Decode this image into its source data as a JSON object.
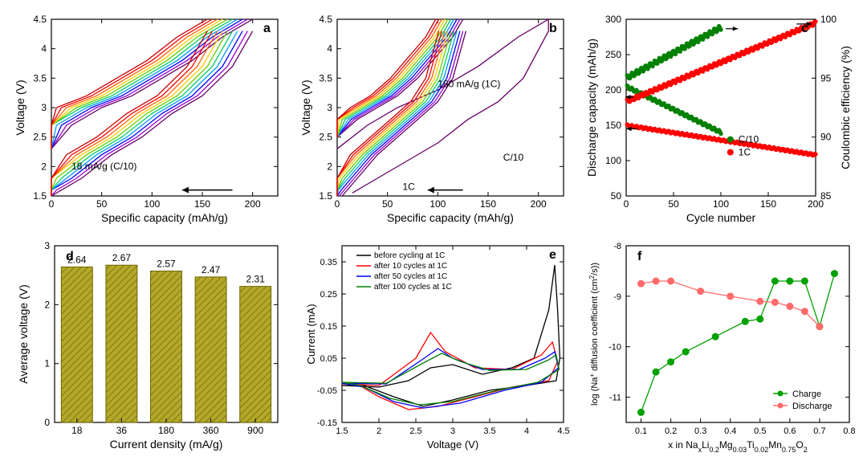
{
  "panel_a": {
    "type": "line",
    "label": "a",
    "xlabel": "Specific capacity (mAh/g)",
    "ylabel": "Voltage (V)",
    "xlim": [
      0,
      225
    ],
    "xtick_step": 50,
    "ylim": [
      1.5,
      4.5
    ],
    "ytick_step": 0.5,
    "annotation": "18 mA/g (C/10)",
    "arrow": "←",
    "colors": [
      "#660066",
      "#9900cc",
      "#0000ff",
      "#0099ff",
      "#00cc66",
      "#66cc00",
      "#ffcc00",
      "#ff6600",
      "#ff0000",
      "#cc0000"
    ],
    "charge_curve": [
      [
        0,
        2.3
      ],
      [
        20,
        2.7
      ],
      [
        50,
        3.0
      ],
      [
        80,
        3.2
      ],
      [
        110,
        3.5
      ],
      [
        140,
        3.8
      ],
      [
        170,
        4.2
      ],
      [
        190,
        4.4
      ],
      [
        200,
        4.5
      ]
    ],
    "discharge_curve": [
      [
        200,
        4.3
      ],
      [
        180,
        3.7
      ],
      [
        150,
        3.2
      ],
      [
        120,
        2.9
      ],
      [
        90,
        2.5
      ],
      [
        60,
        2.2
      ],
      [
        30,
        1.8
      ],
      [
        10,
        1.6
      ],
      [
        0,
        1.5
      ]
    ],
    "shift_per_curve": -5,
    "axis_color": "#000000",
    "label_fontsize": 14,
    "tick_fontsize": 12
  },
  "panel_b": {
    "type": "line",
    "label": "b",
    "xlabel": "Specific capacity (mAh/g)",
    "ylabel": "Voltage (V)",
    "xlim": [
      0,
      225
    ],
    "xtick_step": 50,
    "ylim": [
      1.5,
      4.5
    ],
    "ytick_step": 0.5,
    "annotation_top": "180 mA/g (1C)",
    "annotation_bottom": "1C",
    "annotation_side": "C/10",
    "arrow": "←",
    "colors": [
      "#660066",
      "#9900cc",
      "#0000ff",
      "#0099ff",
      "#00cc66",
      "#66cc00",
      "#ffcc00",
      "#ff6600",
      "#ff0000",
      "#cc0000"
    ],
    "charge_curve": [
      [
        0,
        2.5
      ],
      [
        20,
        2.8
      ],
      [
        40,
        3.0
      ],
      [
        60,
        3.2
      ],
      [
        80,
        3.5
      ],
      [
        100,
        3.9
      ],
      [
        115,
        4.2
      ],
      [
        125,
        4.5
      ]
    ],
    "discharge_curve": [
      [
        128,
        4.3
      ],
      [
        115,
        3.5
      ],
      [
        100,
        3.1
      ],
      [
        80,
        2.8
      ],
      [
        60,
        2.5
      ],
      [
        40,
        2.2
      ],
      [
        20,
        1.8
      ],
      [
        10,
        1.6
      ],
      [
        5,
        1.5
      ]
    ],
    "extra_curve": [
      [
        0,
        2.3
      ],
      [
        30,
        2.7
      ],
      [
        60,
        3.0
      ],
      [
        100,
        3.3
      ],
      [
        140,
        3.7
      ],
      [
        180,
        4.2
      ],
      [
        200,
        4.4
      ],
      [
        210,
        4.5
      ],
      [
        210,
        4.3
      ],
      [
        185,
        3.5
      ],
      [
        160,
        3.1
      ],
      [
        130,
        2.8
      ],
      [
        100,
        2.4
      ],
      [
        70,
        2.1
      ],
      [
        40,
        1.8
      ],
      [
        15,
        1.55
      ]
    ],
    "shift_per_curve": -3,
    "axis_color": "#000000",
    "label_fontsize": 14,
    "tick_fontsize": 12
  },
  "panel_c": {
    "type": "scatter-dual",
    "label": "c",
    "xlabel": "Cycle number",
    "ylabel_left": "Discharge capacity (mAh/g)",
    "ylabel_right": "Coulombic efficiency (%)",
    "xlim": [
      0,
      200
    ],
    "xtick_step": 50,
    "ylim_left": [
      50,
      300
    ],
    "ytick_left_step": 50,
    "ylim_right": [
      85,
      100
    ],
    "ytick_right_step": 5,
    "legend": [
      {
        "label": "C/10",
        "color": "#008000",
        "marker": "circle"
      },
      {
        "label": "1C",
        "color": "#ff0000",
        "marker": "circle"
      }
    ],
    "c10_capacity": {
      "n": 100,
      "start": 205,
      "end": 140
    },
    "c10_eff": {
      "n": 100,
      "start": 95,
      "end": 99.3
    },
    "c1_capacity": {
      "n": 200,
      "start": 150,
      "end": 108
    },
    "c1_eff": {
      "n": 200,
      "start": 93,
      "end": 99.7
    },
    "marker_size": 2.2,
    "axis_color": "#000000",
    "label_fontsize": 14,
    "tick_fontsize": 12
  },
  "panel_d": {
    "type": "bar",
    "label": "d",
    "xlabel": "Current density (mA/g)",
    "ylabel": "Average voltage (V)",
    "categories": [
      "18",
      "36",
      "180",
      "360",
      "900"
    ],
    "values": [
      2.64,
      2.67,
      2.57,
      2.47,
      2.31
    ],
    "ylim": [
      0,
      3
    ],
    "ytick_step": 1,
    "bar_color": "#b3a82a",
    "bar_stroke": "#6e6400",
    "hatch": true,
    "axis_color": "#000000",
    "label_fontsize": 14,
    "tick_fontsize": 12
  },
  "panel_e": {
    "type": "line",
    "label": "e",
    "xlabel": "Voltage (V)",
    "ylabel": "Current (mA)",
    "xlim": [
      1.5,
      4.5
    ],
    "xtick_step": 0.5,
    "ylim": [
      -0.15,
      0.4
    ],
    "ytick_step": 0.1,
    "legend": [
      {
        "label": "before cycling at 1C",
        "color": "#000000"
      },
      {
        "label": "after 10 cycles at 1C",
        "color": "#ff0000"
      },
      {
        "label": "after 50 cycles at 1C",
        "color": "#0000ff"
      },
      {
        "label": "after 100 cycles at 1C",
        "color": "#008000"
      }
    ],
    "curves": {
      "before": [
        [
          1.5,
          -0.035
        ],
        [
          2.0,
          -0.04
        ],
        [
          2.4,
          -0.02
        ],
        [
          2.7,
          0.02
        ],
        [
          3.0,
          0.03
        ],
        [
          3.4,
          0.0
        ],
        [
          3.8,
          0.02
        ],
        [
          4.1,
          0.05
        ],
        [
          4.3,
          0.2
        ],
        [
          4.38,
          0.34
        ],
        [
          4.42,
          0.2
        ],
        [
          4.45,
          0.05
        ],
        [
          4.4,
          -0.02
        ],
        [
          4.0,
          -0.035
        ],
        [
          3.5,
          -0.05
        ],
        [
          3.0,
          -0.08
        ],
        [
          2.6,
          -0.1
        ],
        [
          2.2,
          -0.07
        ],
        [
          1.8,
          -0.035
        ],
        [
          1.5,
          -0.035
        ]
      ],
      "after10": [
        [
          1.5,
          -0.03
        ],
        [
          2.0,
          -0.035
        ],
        [
          2.5,
          0.05
        ],
        [
          2.7,
          0.13
        ],
        [
          2.9,
          0.07
        ],
        [
          3.3,
          0.02
        ],
        [
          3.8,
          0.015
        ],
        [
          4.2,
          0.06
        ],
        [
          4.35,
          0.1
        ],
        [
          4.42,
          0.04
        ],
        [
          4.3,
          -0.02
        ],
        [
          3.8,
          -0.04
        ],
        [
          3.3,
          -0.07
        ],
        [
          2.8,
          -0.1
        ],
        [
          2.4,
          -0.11
        ],
        [
          2.0,
          -0.07
        ],
        [
          1.7,
          -0.03
        ],
        [
          1.5,
          -0.03
        ]
      ],
      "after50": [
        [
          1.5,
          -0.028
        ],
        [
          2.1,
          -0.03
        ],
        [
          2.55,
          0.04
        ],
        [
          2.8,
          0.08
        ],
        [
          3.0,
          0.05
        ],
        [
          3.4,
          0.015
        ],
        [
          3.9,
          0.015
        ],
        [
          4.25,
          0.05
        ],
        [
          4.38,
          0.07
        ],
        [
          4.43,
          0.02
        ],
        [
          4.2,
          -0.025
        ],
        [
          3.7,
          -0.05
        ],
        [
          3.1,
          -0.09
        ],
        [
          2.6,
          -0.105
        ],
        [
          2.2,
          -0.085
        ],
        [
          1.8,
          -0.04
        ],
        [
          1.5,
          -0.028
        ]
      ],
      "after100": [
        [
          1.5,
          -0.025
        ],
        [
          2.1,
          -0.028
        ],
        [
          2.6,
          0.035
        ],
        [
          2.85,
          0.065
        ],
        [
          3.1,
          0.04
        ],
        [
          3.5,
          0.012
        ],
        [
          4.0,
          0.015
        ],
        [
          4.3,
          0.045
        ],
        [
          4.4,
          0.06
        ],
        [
          4.44,
          0.015
        ],
        [
          4.15,
          -0.025
        ],
        [
          3.6,
          -0.05
        ],
        [
          3.0,
          -0.085
        ],
        [
          2.55,
          -0.095
        ],
        [
          2.15,
          -0.075
        ],
        [
          1.75,
          -0.035
        ],
        [
          1.5,
          -0.025
        ]
      ]
    },
    "axis_color": "#000000",
    "label_fontsize": 13,
    "tick_fontsize": 11
  },
  "panel_f": {
    "type": "scatter-line",
    "label": "f",
    "xlabel_template": "x in NaₓLi₀.₂Mg₀.₀₃Ti₀.₀₂Mn₀.₇₅O₂",
    "ylabel": "log (Na⁺ diffusion coefficient (cm²/s))",
    "xlim": [
      0.05,
      0.8
    ],
    "xtick_step": 0.1,
    "ylim": [
      -11.5,
      -8
    ],
    "ytick_step": 1,
    "series": [
      {
        "label": "Charge",
        "color": "#00a000",
        "marker": "circle",
        "points": [
          [
            0.1,
            -11.3
          ],
          [
            0.15,
            -10.5
          ],
          [
            0.2,
            -10.3
          ],
          [
            0.25,
            -10.1
          ],
          [
            0.35,
            -9.8
          ],
          [
            0.45,
            -9.5
          ],
          [
            0.5,
            -9.45
          ],
          [
            0.55,
            -8.7
          ],
          [
            0.6,
            -8.7
          ],
          [
            0.65,
            -8.7
          ],
          [
            0.7,
            -9.6
          ],
          [
            0.75,
            -8.55
          ]
        ]
      },
      {
        "label": "Discharge",
        "color": "#ff6a6a",
        "marker": "circle",
        "points": [
          [
            0.1,
            -8.75
          ],
          [
            0.15,
            -8.7
          ],
          [
            0.2,
            -8.7
          ],
          [
            0.3,
            -8.9
          ],
          [
            0.4,
            -9.0
          ],
          [
            0.5,
            -9.1
          ],
          [
            0.55,
            -9.12
          ],
          [
            0.6,
            -9.2
          ],
          [
            0.65,
            -9.3
          ],
          [
            0.7,
            -9.6
          ]
        ]
      }
    ],
    "axis_color": "#000000",
    "label_fontsize": 12,
    "tick_fontsize": 11,
    "marker_size": 4
  }
}
